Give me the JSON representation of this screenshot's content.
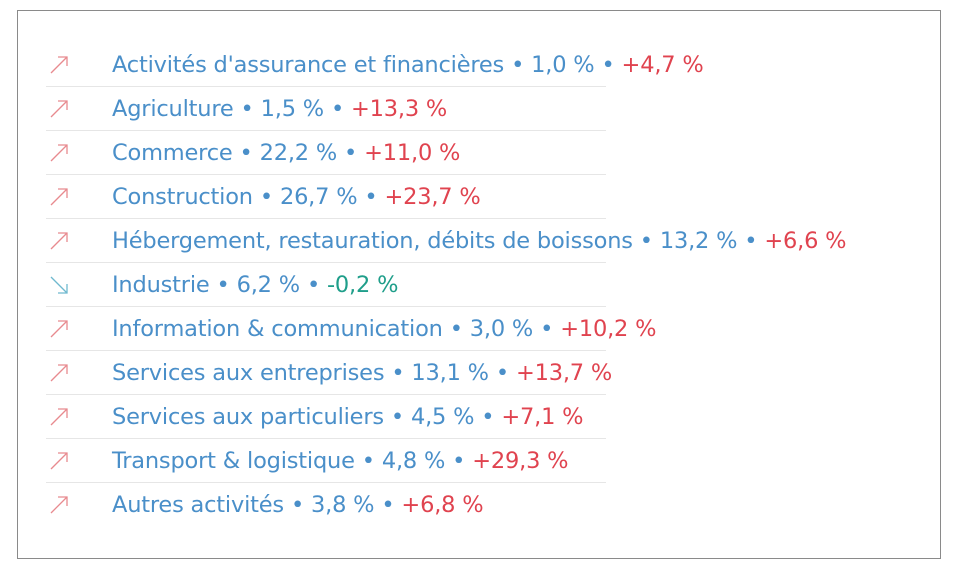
{
  "colors": {
    "label": "#4a8fc9",
    "up": "#e0434f",
    "down": "#1f9e8a",
    "up_icon": "#e88a8f",
    "down_icon": "#6fb9cf"
  },
  "separator": "•",
  "rows": [
    {
      "label": "Activités d'assurance et financières",
      "share": "1,0 %",
      "change": "+4,7 %",
      "trend": "up",
      "icon": "arrow-up-right-icon"
    },
    {
      "label": "Agriculture",
      "share": "1,5 %",
      "change": "+13,3 %",
      "trend": "up",
      "icon": "arrow-up-right-icon"
    },
    {
      "label": "Commerce",
      "share": "22,2 %",
      "change": "+11,0 %",
      "trend": "up",
      "icon": "arrow-up-right-icon"
    },
    {
      "label": "Construction",
      "share": "26,7 %",
      "change": "+23,7 %",
      "trend": "up",
      "icon": "arrow-up-right-icon"
    },
    {
      "label": "Hébergement, restauration, débits de boissons",
      "share": "13,2 %",
      "change": "+6,6 %",
      "trend": "up",
      "icon": "arrow-up-right-icon"
    },
    {
      "label": "Industrie",
      "share": "6,2 %",
      "change": "-0,2 %",
      "trend": "down",
      "icon": "arrow-down-right-icon"
    },
    {
      "label": "Information & communication",
      "share": "3,0 %",
      "change": "+10,2 %",
      "trend": "up",
      "icon": "arrow-up-right-icon"
    },
    {
      "label": "Services aux entreprises",
      "share": "13,1 %",
      "change": "+13,7 %",
      "trend": "up",
      "icon": "arrow-up-right-icon"
    },
    {
      "label": "Services aux particuliers",
      "share": "4,5 %",
      "change": "+7,1 %",
      "trend": "up",
      "icon": "arrow-up-right-icon"
    },
    {
      "label": "Transport & logistique",
      "share": "4,8 %",
      "change": "+29,3 %",
      "trend": "up",
      "icon": "arrow-up-right-icon"
    },
    {
      "label": "Autres activités",
      "share": "3,8 %",
      "change": "+6,8 %",
      "trend": "up",
      "icon": "arrow-up-right-icon"
    }
  ]
}
